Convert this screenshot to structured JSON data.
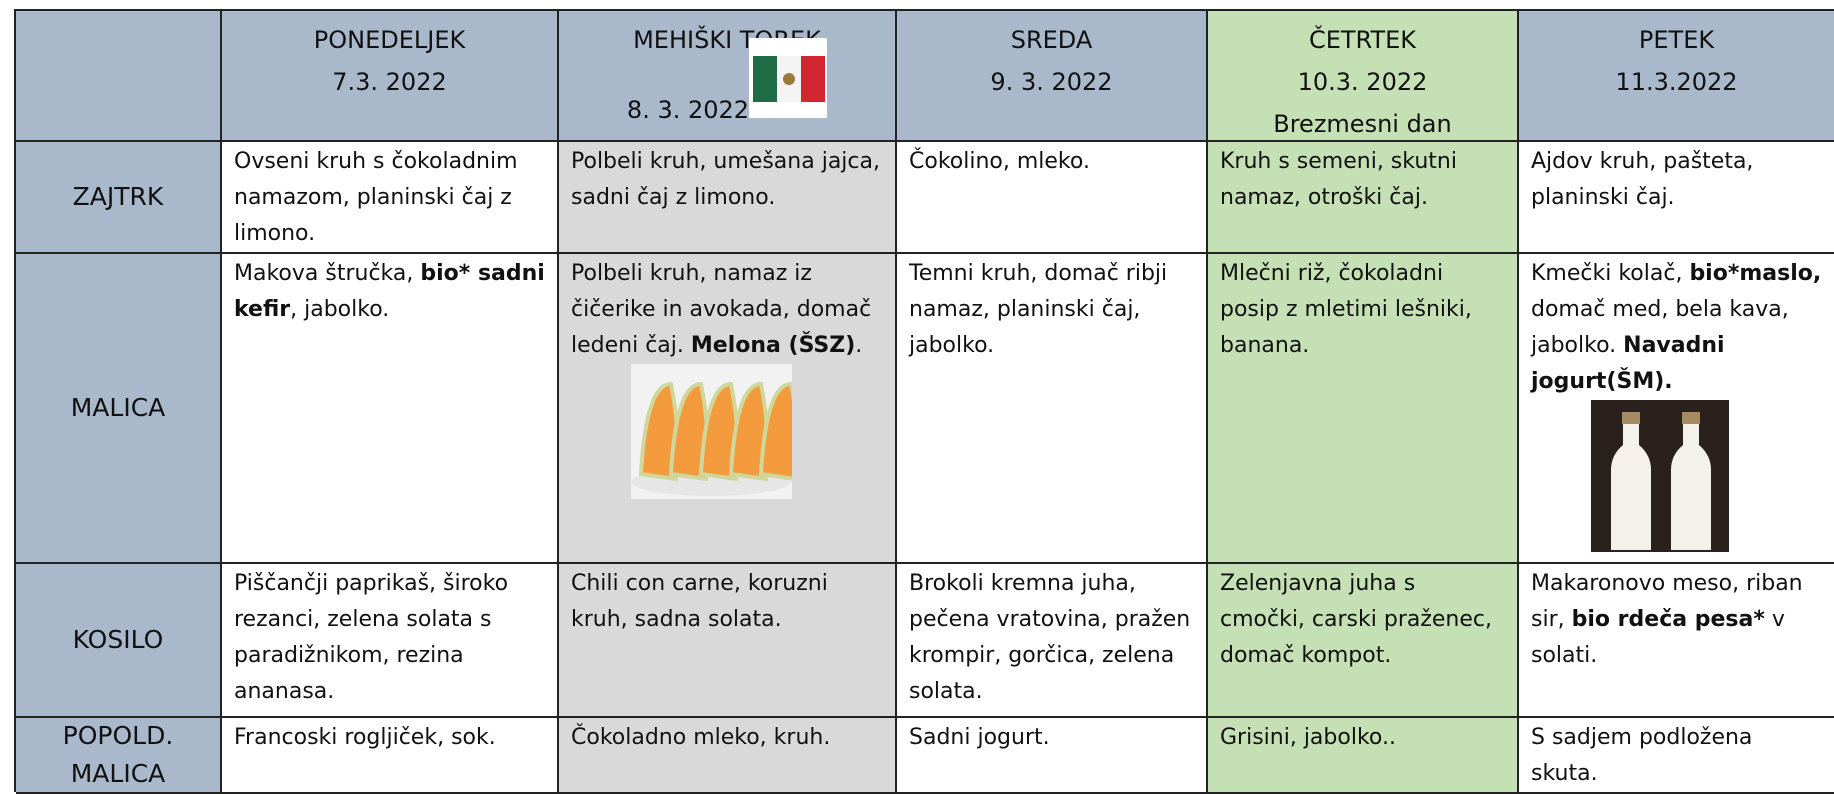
{
  "header": {
    "columns": [
      {
        "day": "PONEDELJEK",
        "date": "7.3. 2022"
      },
      {
        "day": "MEHIŠKI TOREK",
        "date": "8. 3. 2022"
      },
      {
        "day": "SREDA",
        "date": "9. 3. 2022"
      },
      {
        "day": "ČETRTEK",
        "date": "10.3. 2022",
        "note": "Brezmesni dan"
      },
      {
        "day": "PETEK",
        "date": "11.3.2022"
      }
    ]
  },
  "rows": [
    {
      "label": "ZAJTRK",
      "cells": [
        [
          {
            "text": "Ovseni kruh s čokoladnim namazom, planinski čaj z limono."
          }
        ],
        [
          {
            "text": "Polbeli kruh, umešana jajca, sadni čaj z limono."
          }
        ],
        [
          {
            "text": "Čokolino, mleko."
          }
        ],
        [
          {
            "text": "Kruh s semeni, skutni namaz, otroški čaj."
          }
        ],
        [
          {
            "text": "Ajdov kruh, pašteta, planinski čaj."
          }
        ]
      ]
    },
    {
      "label": "MALICA",
      "cells": [
        [
          {
            "text": "Makova štručka, "
          },
          {
            "bold": "bio* sadni kefir"
          },
          {
            "text": ", jabolko."
          }
        ],
        [
          {
            "text": "Polbeli kruh, namaz iz čičerike in avokada, domač ledeni čaj. "
          },
          {
            "bold": "Melona (ŠSZ)"
          },
          {
            "text": "."
          }
        ],
        [
          {
            "text": "Temni kruh, domač ribji namaz, planinski čaj, jabolko."
          }
        ],
        [
          {
            "text": "Mlečni riž, čokoladni posip z mletimi lešniki, banana."
          }
        ],
        [
          {
            "text": "Kmečki kolač, "
          },
          {
            "bold": "bio*maslo,"
          },
          {
            "text": " domač med, bela kava, jabolko. "
          },
          {
            "bold": "Navadni jogurt(ŠM)."
          }
        ]
      ]
    },
    {
      "label": "KOSILO",
      "cells": [
        [
          {
            "text": "Piščančji paprikaš, široko rezanci, zelena solata s paradižnikom, rezina ananasa."
          }
        ],
        [
          {
            "text": "Chili con carne, koruzni kruh, sadna solata."
          }
        ],
        [
          {
            "text": "Brokoli kremna juha, pečena vratovina, pražen krompir, gorčica, zelena solata."
          }
        ],
        [
          {
            "text": "Zelenjavna juha s cmočki, carski praženec, domač kompot."
          }
        ],
        [
          {
            "text": "Makaronovo meso, riban sir, "
          },
          {
            "bold": "bio rdeča pesa*"
          },
          {
            "text": " v solati."
          }
        ]
      ]
    },
    {
      "label": "POPOLD. MALICA",
      "cells": [
        [
          {
            "text": "Francoski rogljiček, sok."
          }
        ],
        [
          {
            "text": "Čokoladno mleko, kruh."
          }
        ],
        [
          {
            "text": "Sadni jogurt."
          }
        ],
        [
          {
            "text": "Grisini, jabolko.."
          }
        ],
        [
          {
            "text": "S sadjem podložena skuta."
          }
        ]
      ]
    }
  ]
}
